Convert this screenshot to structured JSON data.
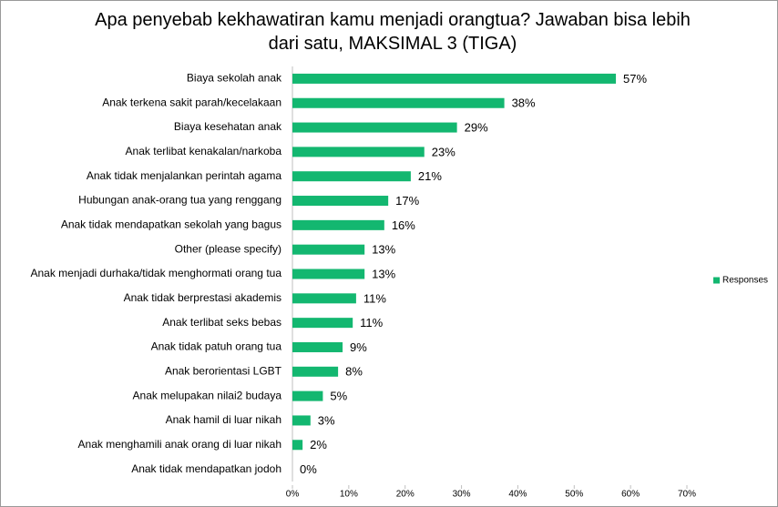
{
  "chart_data": {
    "type": "hbar",
    "title": "Apa penyebab kekhawatiran kamu menjadi orangtua? Jawaban bisa lebih dari satu, MAKSIMAL 3 (TIGA)",
    "categories": [
      "Biaya sekolah anak",
      "Anak terkena sakit parah/kecelakaan",
      "Biaya kesehatan anak",
      "Anak terlibat kenakalan/narkoba",
      "Anak tidak menjalankan perintah agama",
      "Hubungan anak-orang tua yang renggang",
      "Anak tidak mendapatkan sekolah yang bagus",
      "Other (please specify)",
      "Anak menjadi durhaka/tidak menghormati orang tua",
      "Anak tidak berprestasi akademis",
      "Anak terlibat seks bebas",
      "Anak tidak patuh orang tua",
      "Anak berorientasi LGBT",
      "Anak melupakan nilai2 budaya",
      "Anak hamil di luar nikah",
      "Anak menghamili anak orang di luar nikah",
      "Anak tidak mendapatkan jodoh"
    ],
    "series": [
      {
        "name": "Responses",
        "color": "#13b770",
        "values": [
          57.4,
          37.6,
          29.2,
          23.4,
          21.0,
          17.0,
          16.3,
          12.8,
          12.8,
          11.3,
          10.7,
          8.9,
          8.1,
          5.4,
          3.2,
          1.8,
          0
        ],
        "value_labels": [
          "57%",
          "38%",
          "29%",
          "23%",
          "21%",
          "17%",
          "16%",
          "13%",
          "13%",
          "11%",
          "11%",
          "9%",
          "8%",
          "5%",
          "3%",
          "2%",
          "0%"
        ]
      }
    ],
    "xlim": [
      0,
      70
    ],
    "xticks": [
      {
        "value": 0,
        "label": "0%"
      },
      {
        "value": 10,
        "label": "10%"
      },
      {
        "value": 20,
        "label": "20%"
      },
      {
        "value": 30,
        "label": "30%"
      },
      {
        "value": 40,
        "label": "40%"
      },
      {
        "value": 50,
        "label": "50%"
      },
      {
        "value": 60,
        "label": "60%"
      },
      {
        "value": 70,
        "label": "70%"
      }
    ],
    "grid": false,
    "legend": "right"
  }
}
